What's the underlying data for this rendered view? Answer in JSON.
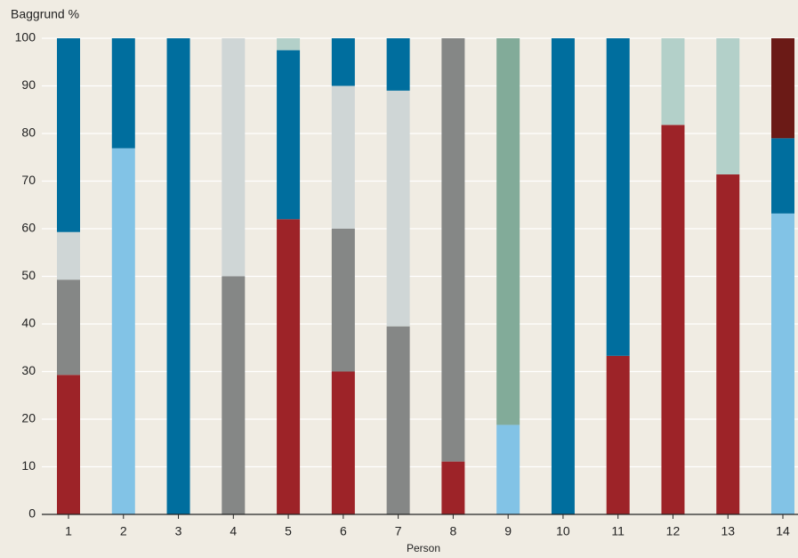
{
  "chart_data": {
    "type": "stacked_bar",
    "y_label": "Baggrund %",
    "x_label": "Person",
    "categories": [
      "1",
      "2",
      "3",
      "4",
      "5",
      "6",
      "7",
      "8",
      "9",
      "10",
      "11",
      "12",
      "13",
      "14"
    ],
    "series": [
      {
        "color": "#9d2328",
        "values": [
          29.3,
          null,
          null,
          null,
          62,
          30,
          null,
          11.1,
          null,
          null,
          33.3,
          81.8,
          71.4,
          null
        ]
      },
      {
        "color": "#82c3e6",
        "values": [
          null,
          76.9,
          null,
          null,
          null,
          null,
          null,
          null,
          18.8,
          null,
          null,
          null,
          null,
          63.2
        ]
      },
      {
        "color": "#858786",
        "values": [
          20,
          null,
          null,
          50,
          null,
          30,
          39.5,
          88.9,
          null,
          null,
          null,
          null,
          null,
          null
        ]
      },
      {
        "color": "#82ab99",
        "values": [
          null,
          null,
          null,
          null,
          null,
          null,
          null,
          null,
          81.2,
          null,
          null,
          null,
          null,
          null
        ]
      },
      {
        "color": "#cfd6d6",
        "values": [
          10,
          null,
          null,
          50,
          null,
          30,
          49.5,
          null,
          null,
          null,
          null,
          null,
          null,
          null
        ]
      },
      {
        "color": "#006e9e",
        "values": [
          40.7,
          23.1,
          100,
          null,
          35.5,
          10,
          11,
          null,
          null,
          100,
          66.7,
          null,
          null,
          15.8
        ]
      },
      {
        "color": "#b3d0c9",
        "values": [
          null,
          null,
          null,
          null,
          2.5,
          null,
          null,
          null,
          null,
          null,
          null,
          18.2,
          28.6,
          null
        ]
      },
      {
        "color": "#6b1a16",
        "values": [
          null,
          null,
          null,
          null,
          null,
          null,
          null,
          null,
          null,
          null,
          null,
          null,
          null,
          21
        ]
      }
    ],
    "ylim": [
      0,
      100
    ],
    "yticks": [
      0,
      10,
      20,
      30,
      40,
      50,
      60,
      70,
      80,
      90,
      100
    ],
    "grid": true
  }
}
